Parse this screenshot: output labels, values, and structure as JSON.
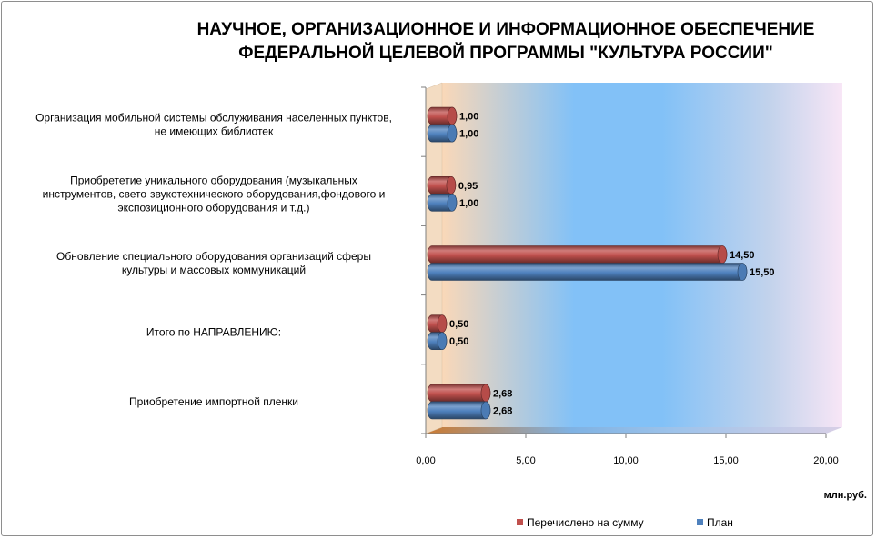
{
  "chart_data": {
    "type": "bar",
    "orientation": "horizontal",
    "title": [
      "НАУЧНОЕ, ОРГАНИЗАЦИОННОЕ И ИНФОРМАЦИОННОЕ ОБЕСПЕЧЕНИЕ",
      "ФЕДЕРАЛЬНОЙ ЦЕЛЕВОЙ ПРОГРАММЫ \"КУЛЬТУРА РОССИИ\""
    ],
    "unit_label": "млн.руб.",
    "categories": [
      [
        "Организация мобильной системы обслуживания населенных пунктов,",
        "не имеющих библиотек"
      ],
      [
        "Приобрететие уникального оборудования (музыкальных",
        "инструментов, свето-звукотехнического оборудования,фондового и",
        "экспозиционного оборудования и т.д.)"
      ],
      [
        "Обновление специального оборудования организаций сферы",
        "культуры и массовых коммуникаций"
      ],
      [
        "Итого по НАПРАВЛЕНИЮ:"
      ],
      [
        "Приобретение импортной пленки"
      ]
    ],
    "series": [
      {
        "name": "Перечислено на сумму",
        "color": "#c0504d",
        "values": [
          1.0,
          0.95,
          14.5,
          0.5,
          2.68
        ],
        "labels": [
          "1,00",
          "0,95",
          "14,50",
          "0,50",
          "2,68"
        ]
      },
      {
        "name": "План",
        "color": "#4f81bd",
        "values": [
          1.0,
          1.0,
          15.5,
          0.5,
          2.68
        ],
        "labels": [
          "1,00",
          "1,00",
          "15,50",
          "0,50",
          "2,68"
        ]
      }
    ],
    "xlim": [
      0,
      20
    ],
    "xticks": [
      0,
      5,
      10,
      15,
      20
    ],
    "xtick_labels": [
      "0,00",
      "5,00",
      "10,00",
      "15,00",
      "20,00"
    ],
    "legend_position": "bottom-right",
    "gridlines": false
  }
}
